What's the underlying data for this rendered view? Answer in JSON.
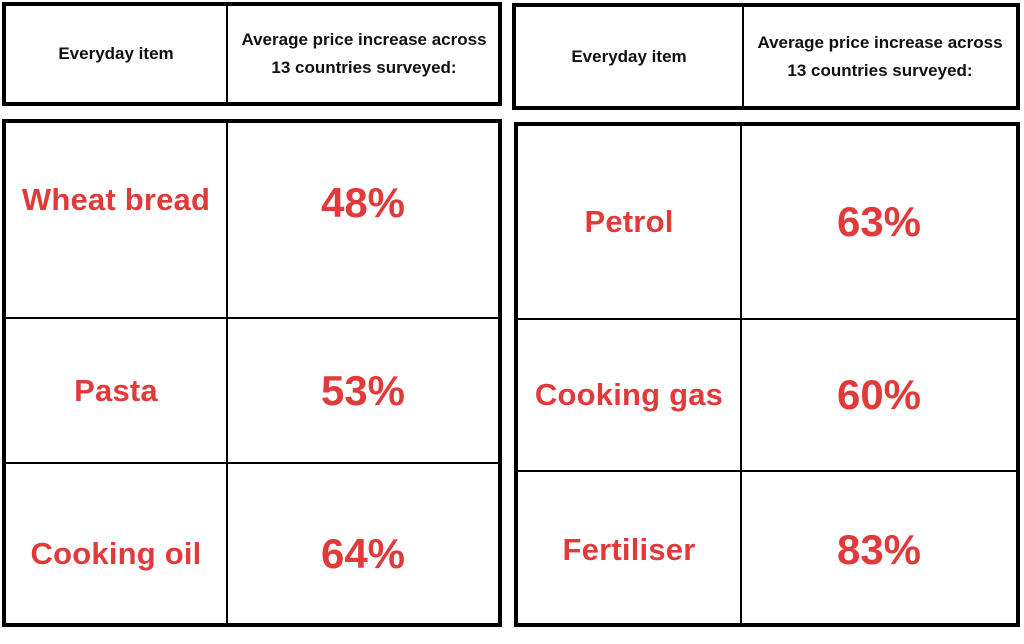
{
  "chart_data": [
    {
      "type": "table",
      "columns": [
        "Everyday item",
        "Average price increase across 13 countries surveyed:"
      ],
      "rows": [
        {
          "item": "Wheat bread",
          "increase": "48%",
          "value": 48
        },
        {
          "item": "Pasta",
          "increase": "53%",
          "value": 53
        },
        {
          "item": "Cooking oil",
          "increase": "64%",
          "value": 64
        }
      ]
    },
    {
      "type": "table",
      "columns": [
        "Everyday item",
        "Average price increase across 13 countries surveyed:"
      ],
      "rows": [
        {
          "item": "Petrol",
          "increase": "63%",
          "value": 63
        },
        {
          "item": "Cooking gas",
          "increase": "60%",
          "value": 60
        },
        {
          "item": "Fertiliser",
          "increase": "83%",
          "value": 83
        }
      ]
    }
  ],
  "colors": {
    "accent": "#e03a3a",
    "text": "#111111",
    "border": "#000000"
  }
}
